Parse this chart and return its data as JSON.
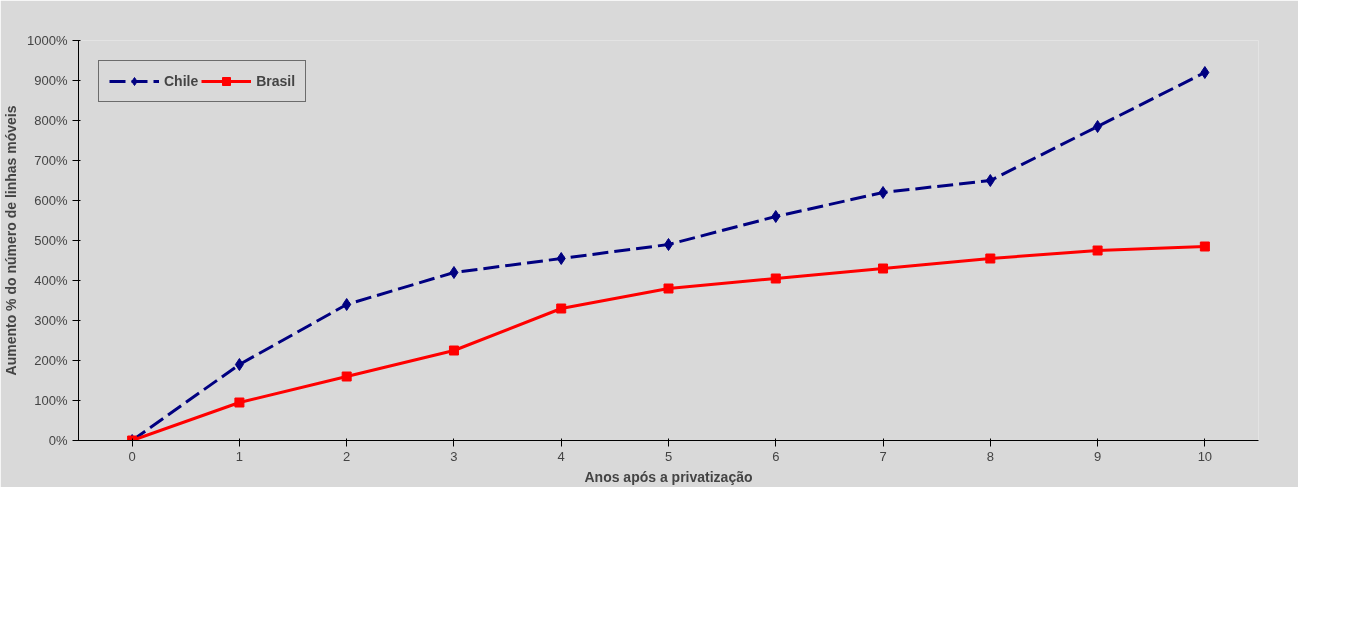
{
  "chart_data": {
    "type": "line",
    "xlabel": "Anos após a privatização",
    "ylabel": "Aumento % do número de linhas móveis",
    "categories": [
      "0",
      "1",
      "2",
      "3",
      "4",
      "5",
      "6",
      "7",
      "8",
      "9",
      "10"
    ],
    "series": [
      {
        "name": "Chile",
        "color": "#000080",
        "marker": "diamond",
        "line_style": "dashed",
        "values": [
          0,
          190,
          340,
          420,
          455,
          490,
          560,
          620,
          650,
          785,
          920
        ]
      },
      {
        "name": "Brasil",
        "color": "#ff0000",
        "marker": "square",
        "line_style": "solid",
        "values": [
          0,
          95,
          160,
          225,
          330,
          380,
          405,
          430,
          455,
          475,
          485
        ]
      }
    ],
    "ylim": [
      0,
      1000
    ],
    "yticks": [
      {
        "value": 0,
        "label": "0%"
      },
      {
        "value": 100,
        "label": "100%"
      },
      {
        "value": 200,
        "label": "200%"
      },
      {
        "value": 300,
        "label": "300%"
      },
      {
        "value": 400,
        "label": "400%"
      },
      {
        "value": 500,
        "label": "500%"
      },
      {
        "value": 600,
        "label": "600%"
      },
      {
        "value": 700,
        "label": "700%"
      },
      {
        "value": 800,
        "label": "800%"
      },
      {
        "value": 900,
        "label": "900%"
      },
      {
        "value": 1000,
        "label": "1000%"
      }
    ],
    "grid": false,
    "legend": "top left"
  }
}
